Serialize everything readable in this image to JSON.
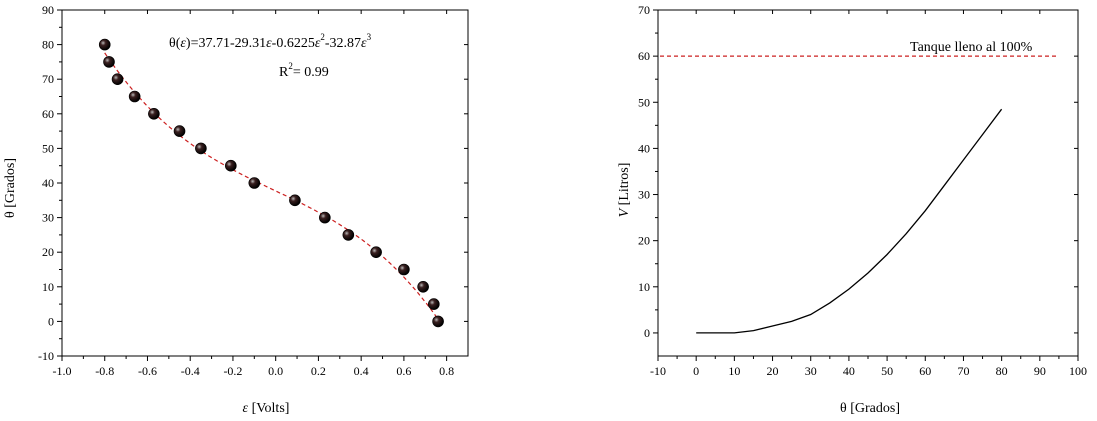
{
  "chart_data": [
    {
      "type": "scatter",
      "xlabel_var": "ε",
      "xlabel_unit": " [Volts]",
      "ylabel": "θ [Grados]",
      "xlim": [
        -1.0,
        0.9
      ],
      "ylim": [
        -10,
        90
      ],
      "xticks": [
        -1.0,
        -0.8,
        -0.6,
        -0.4,
        -0.2,
        0.0,
        0.2,
        0.4,
        0.6,
        0.8
      ],
      "xtick_labels": [
        "-1.0",
        "-0.8",
        "-0.6",
        "-0.4",
        "-0.2",
        "0.0",
        "0.2",
        "0.4",
        "0.6",
        "0.8"
      ],
      "yticks": [
        -10,
        0,
        10,
        20,
        30,
        40,
        50,
        60,
        70,
        80,
        90
      ],
      "ytick_labels": [
        "-10",
        "0",
        "10",
        "20",
        "30",
        "40",
        "50",
        "60",
        "70",
        "80",
        "90"
      ],
      "grid": false,
      "series": [
        {
          "kind": "scatter",
          "marker_color": "#000000",
          "x": [
            -0.8,
            -0.78,
            -0.74,
            -0.66,
            -0.57,
            -0.45,
            -0.35,
            -0.21,
            -0.1,
            0.09,
            0.23,
            0.34,
            0.47,
            0.6,
            0.69,
            0.74,
            0.76
          ],
          "y": [
            80,
            75,
            70,
            65,
            60,
            55,
            50,
            45,
            40,
            35,
            30,
            25,
            20,
            15,
            10,
            5,
            0
          ]
        },
        {
          "kind": "fit-line",
          "line_style": "dashed",
          "color": "#cc2020",
          "x_range": [
            -0.8,
            0.76
          ],
          "coefficients": [
            37.71,
            -29.31,
            -0.6225,
            -32.87
          ]
        }
      ],
      "annotations": {
        "equation": {
          "lhs_a": "θ(",
          "lhs_var": "ε",
          "lhs_b": ")=37.71-29.31",
          "t1_var": "ε",
          "t2": "-0.6225",
          "t2_var": "ε",
          "t2_exp": "2",
          "t3": "-32.87",
          "t3_var": "ε",
          "t3_exp": "3"
        },
        "r2_label": "R",
        "r2_exp": "2",
        "r2_value": "= 0.99"
      }
    },
    {
      "type": "line",
      "xlabel": "θ [Grados]",
      "ylabel_var": "V",
      "ylabel_unit": " [Litros]",
      "xlim": [
        -10,
        100
      ],
      "ylim": [
        -5,
        70
      ],
      "xticks": [
        -10,
        0,
        10,
        20,
        30,
        40,
        50,
        60,
        70,
        80,
        90,
        100
      ],
      "xtick_labels": [
        "-10",
        "0",
        "10",
        "20",
        "30",
        "40",
        "50",
        "60",
        "70",
        "80",
        "90",
        "100"
      ],
      "yticks": [
        0,
        10,
        20,
        30,
        40,
        50,
        60,
        70
      ],
      "ytick_labels": [
        "0",
        "10",
        "20",
        "30",
        "40",
        "50",
        "60",
        "70"
      ],
      "grid": false,
      "series": [
        {
          "kind": "line",
          "line_style": "solid",
          "color": "#000000",
          "x": [
            0,
            5,
            10,
            15,
            20,
            25,
            30,
            35,
            40,
            45,
            50,
            55,
            60,
            65,
            70,
            75,
            80
          ],
          "y": [
            0,
            0,
            0,
            0.5,
            1.5,
            2.5,
            4,
            6.5,
            9.5,
            13,
            17,
            21.5,
            26.5,
            32,
            37.5,
            43,
            48.5
          ]
        }
      ],
      "reference_line": {
        "y": 60,
        "line_style": "dashed",
        "color": "#cc2020",
        "label": "Tanque lleno al 100%"
      }
    }
  ]
}
